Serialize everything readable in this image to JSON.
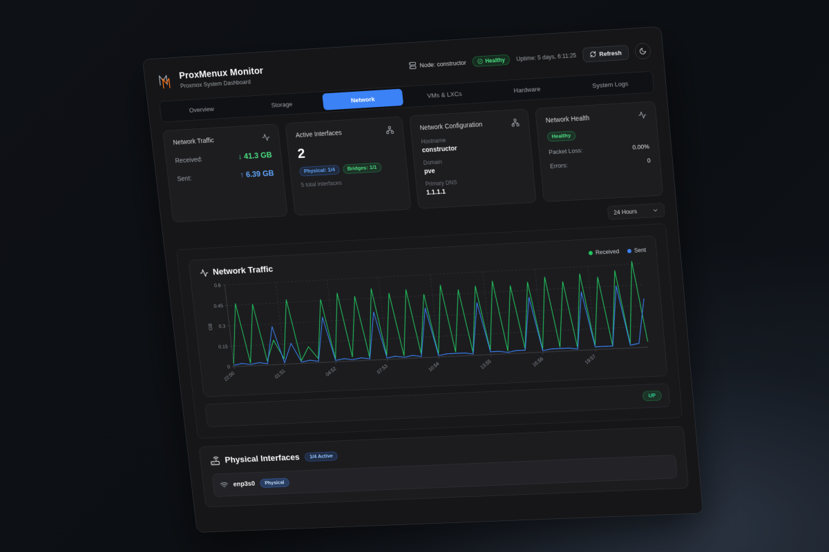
{
  "colors": {
    "accent-blue": "#3b82f6",
    "blue-light": "#60a5fa",
    "green": "#22c55e",
    "green-light": "#4ade80",
    "bg-board": "#161618",
    "bg-card": "#1d1d20",
    "border": "#2c2e33",
    "text-muted": "#9aa0a6",
    "text-faint": "#6f747b"
  },
  "header": {
    "brand": {
      "title": "ProxMenux Monitor",
      "subtitle": "Proxmox System Dashboard"
    },
    "node_label": "Node: constructor",
    "health_badge": "Healthy",
    "uptime": "Uptime: 5 days, 6:11:25",
    "refresh_label": "Refresh"
  },
  "tabs": [
    {
      "label": "Overview",
      "active": false
    },
    {
      "label": "Storage",
      "active": false
    },
    {
      "label": "Network",
      "active": true
    },
    {
      "label": "VMs & LXCs",
      "active": false
    },
    {
      "label": "Hardware",
      "active": false
    },
    {
      "label": "System Logs",
      "active": false
    }
  ],
  "cards": {
    "traffic": {
      "title": "Network Traffic",
      "received_label": "Received:",
      "received_value": "↓ 41.3 GB",
      "sent_label": "Sent:",
      "sent_value": "↑ 6.39 GB"
    },
    "interfaces": {
      "title": "Active Interfaces",
      "count": "2",
      "physical_badge": "Physical: 1/4",
      "bridges_badge": "Bridges: 1/1",
      "total": "5 total interfaces"
    },
    "config": {
      "title": "Network Configuration",
      "hostname_label": "Hostname",
      "hostname": "constructor",
      "domain_label": "Domain",
      "domain": "pve",
      "dns_label": "Primary DNS",
      "dns": "1.1.1.1"
    },
    "health": {
      "title": "Network Health",
      "status": "Healthy",
      "packet_loss_label": "Packet Loss:",
      "packet_loss": "0.00%",
      "errors_label": "Errors:",
      "errors": "0"
    }
  },
  "time_range": {
    "selected": "24 Hours"
  },
  "chart_data": {
    "type": "line",
    "title": "Network Traffic",
    "ylabel": "GB",
    "ylim": [
      0,
      0.6
    ],
    "y_ticks": [
      0,
      0.15,
      0.3,
      0.45,
      0.6
    ],
    "y_tick_labels": [
      "0",
      "0.15",
      "0.3",
      "0.45",
      "0.6"
    ],
    "x_tick_labels": [
      "22:50",
      "01:51",
      "04:52",
      "07:53",
      "10:54",
      "13:55",
      "16:56",
      "19:57"
    ],
    "x_tick_indices": [
      0,
      6,
      12,
      18,
      24,
      30,
      36,
      42
    ],
    "grid": true,
    "legend_position": "top-right",
    "series": [
      {
        "name": "Received",
        "color": "#22c55e",
        "values": [
          0.02,
          0.46,
          0.02,
          0.45,
          0.03,
          0.18,
          0.04,
          0.47,
          0.02,
          0.12,
          0.03,
          0.46,
          0.02,
          0.5,
          0.03,
          0.47,
          0.02,
          0.52,
          0.03,
          0.48,
          0.02,
          0.5,
          0.03,
          0.46,
          0.02,
          0.52,
          0.03,
          0.48,
          0.02,
          0.5,
          0.03,
          0.53,
          0.02,
          0.49,
          0.03,
          0.51,
          0.02,
          0.54,
          0.03,
          0.5,
          0.02,
          0.55,
          0.03,
          0.52,
          0.02,
          0.56,
          0.03,
          0.62,
          0.04
        ]
      },
      {
        "name": "Sent",
        "color": "#3b82f6",
        "values": [
          0.01,
          0.02,
          0.01,
          0.02,
          0.01,
          0.28,
          0.01,
          0.15,
          0.01,
          0.02,
          0.01,
          0.33,
          0.01,
          0.02,
          0.01,
          0.02,
          0.01,
          0.35,
          0.01,
          0.02,
          0.01,
          0.02,
          0.01,
          0.36,
          0.01,
          0.02,
          0.02,
          0.02,
          0.01,
          0.38,
          0.02,
          0.02,
          0.01,
          0.02,
          0.02,
          0.4,
          0.01,
          0.02,
          0.02,
          0.02,
          0.01,
          0.42,
          0.02,
          0.02,
          0.02,
          0.45,
          0.02,
          0.03,
          0.35
        ]
      }
    ]
  },
  "bridge_row": {
    "status": "UP"
  },
  "physical_interfaces": {
    "title": "Physical Interfaces",
    "active_badge": "1/4 Active",
    "rows": [
      {
        "name": "enp3s0",
        "type_badge": "Physical"
      }
    ]
  }
}
